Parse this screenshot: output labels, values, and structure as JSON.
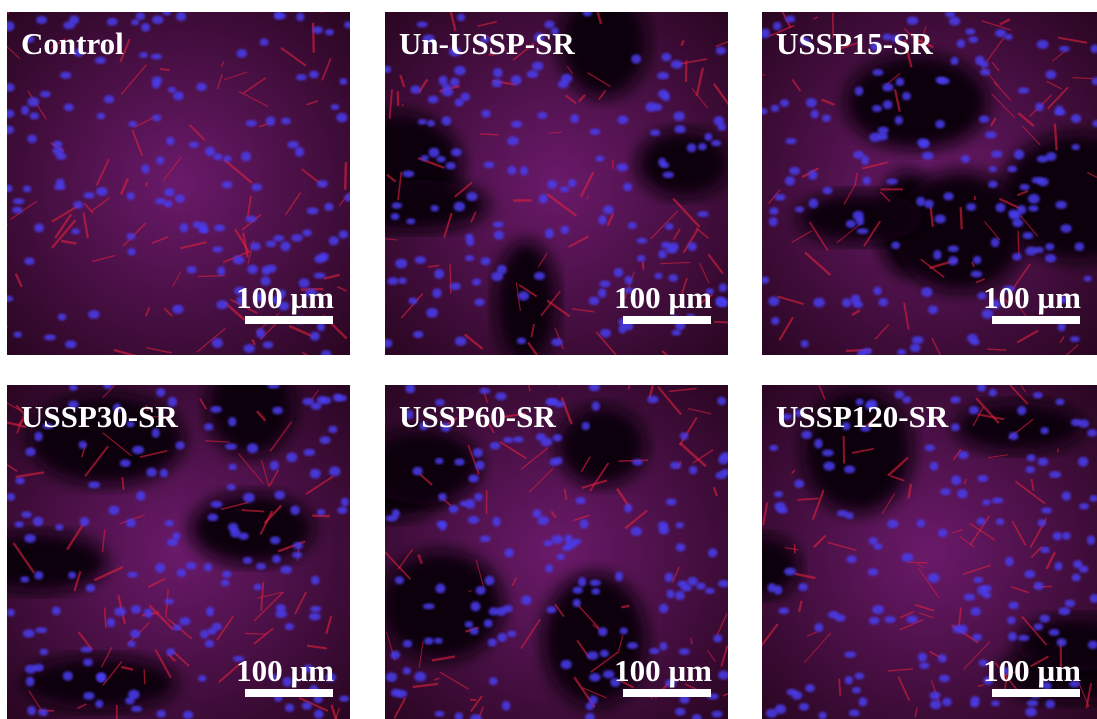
{
  "panels": [
    {
      "label": "Control",
      "scale": "100 µm"
    },
    {
      "label": "Un-USSP-SR",
      "scale": "100 µm"
    },
    {
      "label": "USSP15-SR",
      "scale": "100 µm"
    },
    {
      "label": "USSP30-SR",
      "scale": "100 µm"
    },
    {
      "label": "USSP60-SR",
      "scale": "100 µm"
    },
    {
      "label": "USSP120-SR",
      "scale": "100 µm"
    }
  ]
}
